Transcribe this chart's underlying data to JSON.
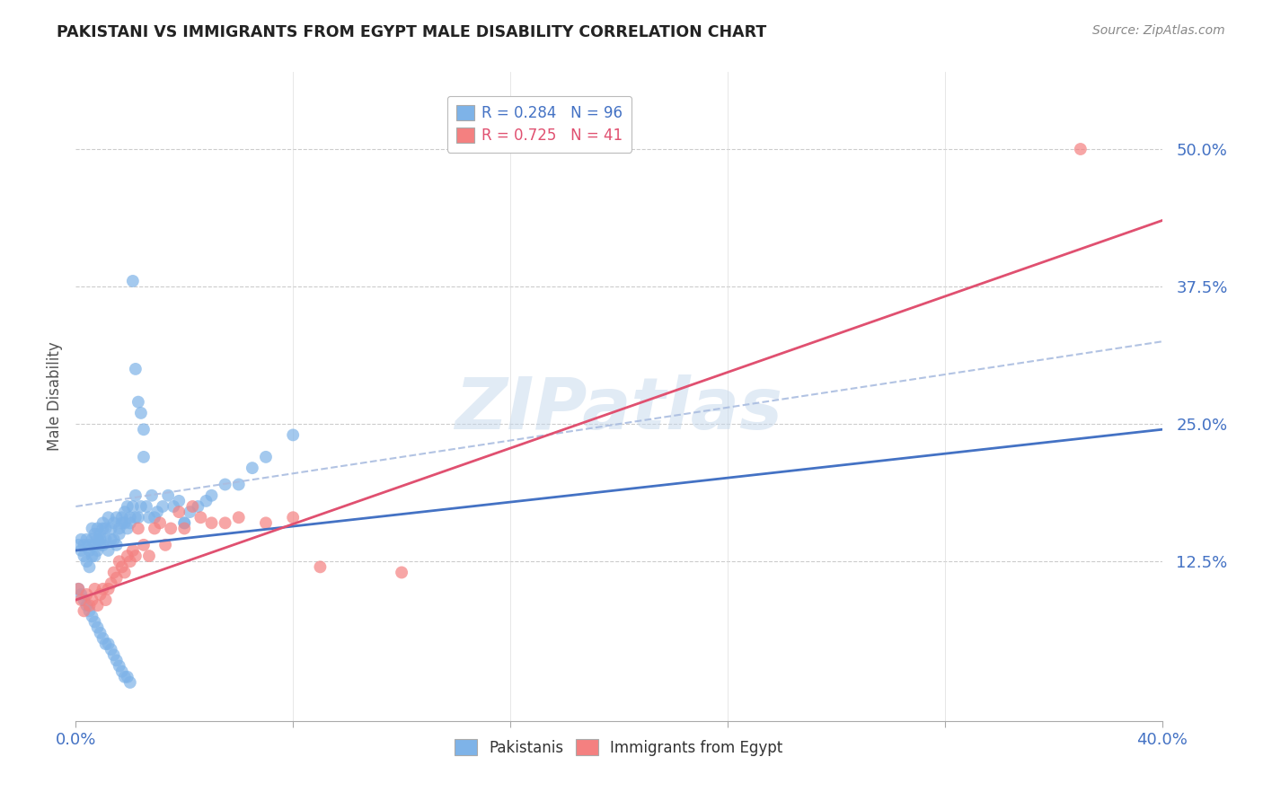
{
  "title": "PAKISTANI VS IMMIGRANTS FROM EGYPT MALE DISABILITY CORRELATION CHART",
  "source": "Source: ZipAtlas.com",
  "ylabel": "Male Disability",
  "ytick_labels": [
    "12.5%",
    "25.0%",
    "37.5%",
    "50.0%"
  ],
  "ytick_values": [
    0.125,
    0.25,
    0.375,
    0.5
  ],
  "xlim": [
    0.0,
    0.4
  ],
  "ylim": [
    -0.02,
    0.57
  ],
  "blue_color": "#7EB3E8",
  "pink_color": "#F48080",
  "trend_blue": "#4472C4",
  "trend_pink": "#E05070",
  "dashed_color": "#AABDE0",
  "watermark": "ZIPatlas",
  "pak_trend_x0": 0.0,
  "pak_trend_y0": 0.135,
  "pak_trend_x1": 0.4,
  "pak_trend_y1": 0.245,
  "egy_trend_x0": 0.0,
  "egy_trend_y0": 0.09,
  "egy_trend_x1": 0.4,
  "egy_trend_y1": 0.435,
  "dash_trend_x0": 0.0,
  "dash_trend_y0": 0.175,
  "dash_trend_x1": 0.4,
  "dash_trend_y1": 0.325,
  "pakistanis_x": [
    0.001,
    0.002,
    0.002,
    0.003,
    0.003,
    0.004,
    0.004,
    0.005,
    0.005,
    0.005,
    0.006,
    0.006,
    0.006,
    0.007,
    0.007,
    0.007,
    0.008,
    0.008,
    0.008,
    0.009,
    0.009,
    0.009,
    0.01,
    0.01,
    0.01,
    0.011,
    0.011,
    0.012,
    0.012,
    0.013,
    0.013,
    0.014,
    0.014,
    0.015,
    0.015,
    0.016,
    0.016,
    0.017,
    0.017,
    0.018,
    0.018,
    0.019,
    0.019,
    0.02,
    0.02,
    0.021,
    0.022,
    0.022,
    0.023,
    0.024,
    0.025,
    0.026,
    0.027,
    0.028,
    0.029,
    0.03,
    0.032,
    0.034,
    0.036,
    0.038,
    0.04,
    0.042,
    0.045,
    0.048,
    0.05,
    0.055,
    0.06,
    0.065,
    0.07,
    0.08,
    0.001,
    0.002,
    0.003,
    0.004,
    0.005,
    0.006,
    0.007,
    0.008,
    0.009,
    0.01,
    0.011,
    0.012,
    0.013,
    0.014,
    0.015,
    0.016,
    0.017,
    0.018,
    0.019,
    0.02,
    0.021,
    0.022,
    0.023,
    0.024,
    0.025,
    0.04
  ],
  "pakistanis_y": [
    0.14,
    0.145,
    0.135,
    0.13,
    0.14,
    0.125,
    0.145,
    0.12,
    0.135,
    0.14,
    0.13,
    0.145,
    0.155,
    0.14,
    0.15,
    0.13,
    0.145,
    0.155,
    0.135,
    0.14,
    0.15,
    0.145,
    0.155,
    0.14,
    0.16,
    0.145,
    0.155,
    0.135,
    0.165,
    0.145,
    0.155,
    0.16,
    0.145,
    0.14,
    0.165,
    0.155,
    0.15,
    0.165,
    0.16,
    0.16,
    0.17,
    0.155,
    0.175,
    0.165,
    0.16,
    0.175,
    0.165,
    0.185,
    0.165,
    0.175,
    0.22,
    0.175,
    0.165,
    0.185,
    0.165,
    0.17,
    0.175,
    0.185,
    0.175,
    0.18,
    0.16,
    0.17,
    0.175,
    0.18,
    0.185,
    0.195,
    0.195,
    0.21,
    0.22,
    0.24,
    0.1,
    0.095,
    0.09,
    0.085,
    0.08,
    0.075,
    0.07,
    0.065,
    0.06,
    0.055,
    0.05,
    0.05,
    0.045,
    0.04,
    0.035,
    0.03,
    0.025,
    0.02,
    0.02,
    0.015,
    0.38,
    0.3,
    0.27,
    0.26,
    0.245,
    0.16
  ],
  "egypt_x": [
    0.001,
    0.002,
    0.003,
    0.004,
    0.005,
    0.006,
    0.007,
    0.008,
    0.009,
    0.01,
    0.011,
    0.012,
    0.013,
    0.014,
    0.015,
    0.016,
    0.017,
    0.018,
    0.019,
    0.02,
    0.021,
    0.022,
    0.023,
    0.025,
    0.027,
    0.029,
    0.031,
    0.033,
    0.035,
    0.038,
    0.04,
    0.043,
    0.046,
    0.05,
    0.055,
    0.06,
    0.07,
    0.08,
    0.09,
    0.12,
    0.37
  ],
  "egypt_y": [
    0.1,
    0.09,
    0.08,
    0.095,
    0.085,
    0.09,
    0.1,
    0.085,
    0.095,
    0.1,
    0.09,
    0.1,
    0.105,
    0.115,
    0.11,
    0.125,
    0.12,
    0.115,
    0.13,
    0.125,
    0.135,
    0.13,
    0.155,
    0.14,
    0.13,
    0.155,
    0.16,
    0.14,
    0.155,
    0.17,
    0.155,
    0.175,
    0.165,
    0.16,
    0.16,
    0.165,
    0.16,
    0.165,
    0.12,
    0.115,
    0.5
  ]
}
